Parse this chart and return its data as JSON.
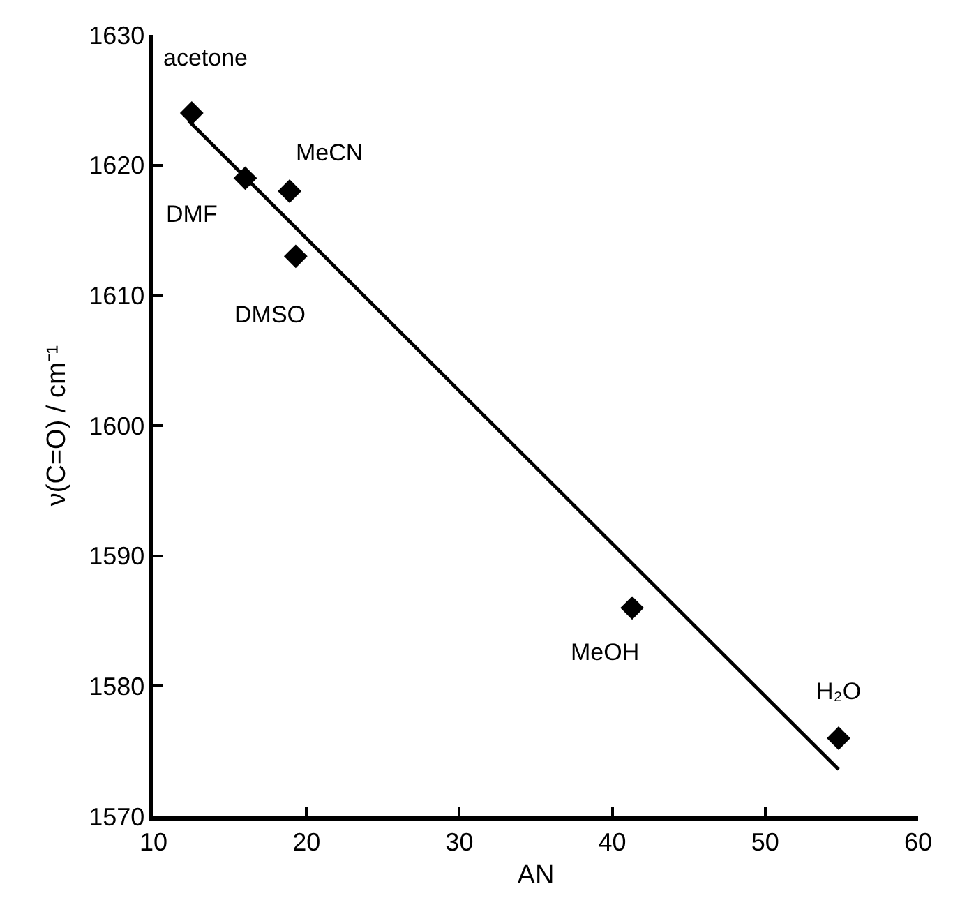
{
  "chart_data": {
    "type": "scatter",
    "xlabel": "AN",
    "ylabel": "ν(C=O) / cm⁻¹",
    "series": [
      {
        "color": "#000000",
        "marker": "diamond",
        "x": [
          12.5,
          16.0,
          18.9,
          19.3,
          41.3,
          54.8
        ],
        "values": [
          1624,
          1619,
          1618,
          1613,
          1586,
          1576
        ]
      },
      {
        "type": "line",
        "color": "#000000",
        "marker": "none",
        "line_style": "solid",
        "x": [
          12.3,
          54.8
        ],
        "values": [
          1623.4,
          1573.6
        ]
      }
    ],
    "annotations": [
      {
        "text": "acetone",
        "x": 12.5,
        "y": 1624
      },
      {
        "text": "DMF",
        "x": 16.0,
        "y": 1619
      },
      {
        "text": "MeCN",
        "x": 18.9,
        "y": 1618
      },
      {
        "text": "DMSO",
        "x": 19.3,
        "y": 1613
      },
      {
        "text": "MeOH",
        "x": 41.3,
        "y": 1586
      },
      {
        "text": "H₂O",
        "x": 54.8,
        "y": 1576
      }
    ],
    "xlim": [
      10,
      60
    ],
    "xticks": [
      10,
      20,
      30,
      40,
      50,
      60
    ],
    "ylim": [
      1570,
      1630
    ],
    "yticks": [
      1570,
      1580,
      1590,
      1600,
      1610,
      1620,
      1630
    ]
  }
}
